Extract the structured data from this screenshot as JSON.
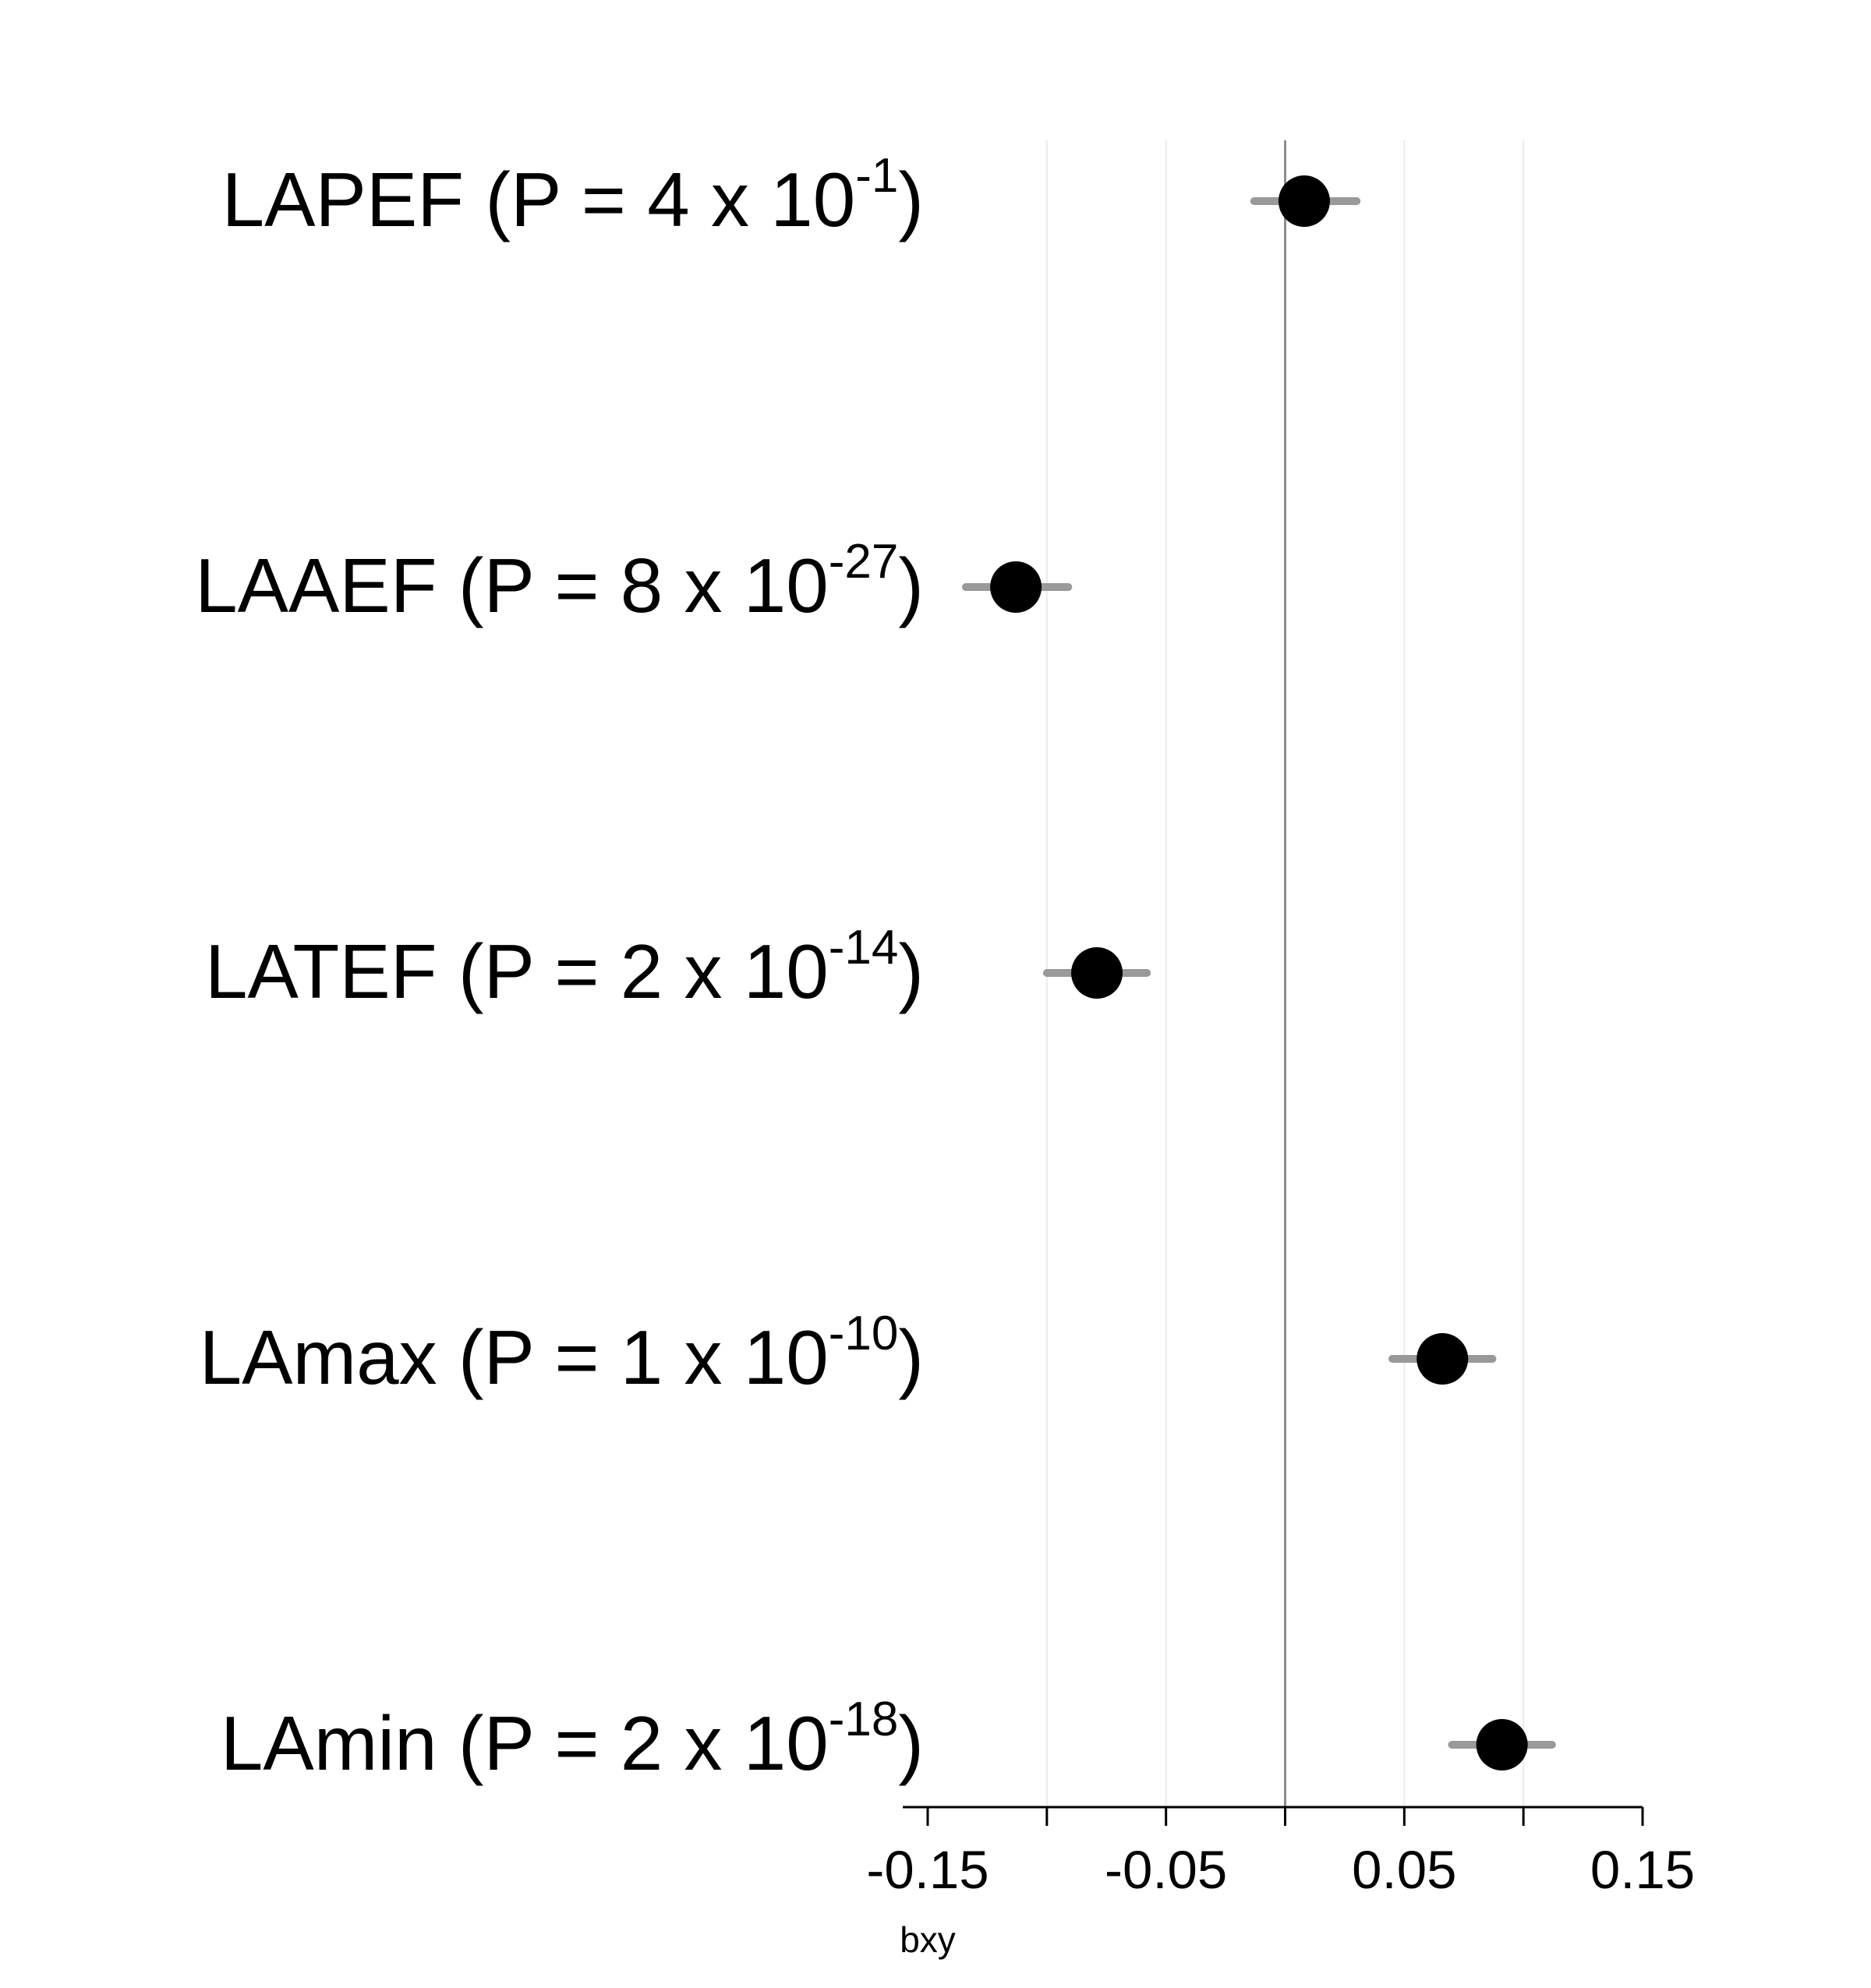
{
  "chart_data": {
    "type": "scatter",
    "subtype": "forest-plot",
    "title": "",
    "xlabel": "bxy",
    "ylabel": "",
    "xlim": [
      -0.15,
      0.15
    ],
    "x_ticks": [
      -0.15,
      -0.1,
      -0.05,
      0,
      0.05,
      0.1,
      0.15
    ],
    "x_tick_labels": [
      "-0.15",
      "",
      "-0.05",
      "",
      "0.05",
      "",
      "0.15"
    ],
    "grid": "vertical-major",
    "reference_line_x": 0,
    "rows": [
      {
        "name": "LAPEF",
        "p_mantissa": "4",
        "p_exponent": "-1",
        "estimate": 0.008,
        "ci_low": -0.013,
        "ci_high": 0.03
      },
      {
        "name": "LAAEF",
        "p_mantissa": "8",
        "p_exponent": "-27",
        "estimate": -0.113,
        "ci_low": -0.134,
        "ci_high": -0.091
      },
      {
        "name": "LATEF",
        "p_mantissa": "2",
        "p_exponent": "-14",
        "estimate": -0.079,
        "ci_low": -0.1,
        "ci_high": -0.058
      },
      {
        "name": "LAmax",
        "p_mantissa": "1",
        "p_exponent": "-10",
        "estimate": 0.066,
        "ci_low": 0.045,
        "ci_high": 0.087
      },
      {
        "name": "LAmin",
        "p_mantissa": "2",
        "p_exponent": "-18",
        "estimate": 0.091,
        "ci_low": 0.07,
        "ci_high": 0.112
      }
    ],
    "colors": {
      "point": "#000000",
      "ci": "#999999",
      "grid": "#ebebeb",
      "reference_line": "#8c8c8c",
      "axis": "#000000"
    }
  }
}
